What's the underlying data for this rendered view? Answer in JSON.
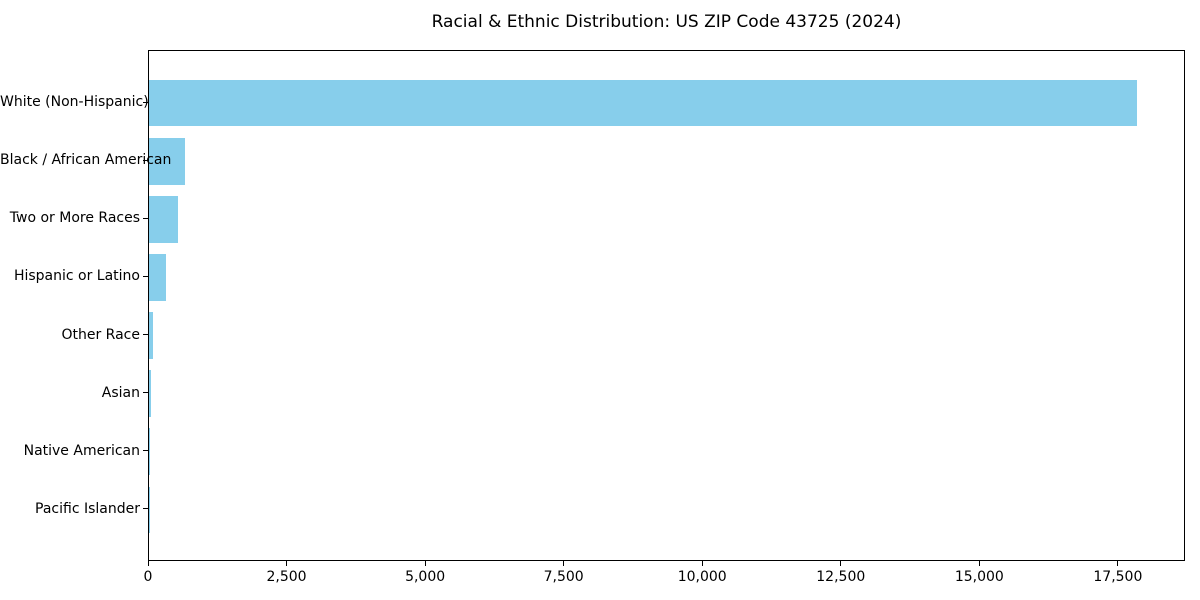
{
  "title": "Racial & Ethnic Distribution: US ZIP Code 43725 (2024)",
  "chart_data": {
    "type": "bar",
    "orientation": "horizontal",
    "title": "Racial & Ethnic Distribution: US ZIP Code 43725 (2024)",
    "categories": [
      "White (Non-Hispanic)",
      "Black / African American",
      "Two or More Races",
      "Hispanic or Latino",
      "Other Race",
      "Asian",
      "Native American",
      "Pacific Islander"
    ],
    "values": [
      17820,
      655,
      515,
      310,
      67,
      28,
      10,
      2
    ],
    "xlabel": "",
    "ylabel": "",
    "xlim": [
      0,
      18711
    ],
    "xticks": [
      0,
      2500,
      5000,
      7500,
      10000,
      12500,
      15000,
      17500
    ],
    "xtick_labels": [
      "0",
      "2,500",
      "5,000",
      "7,500",
      "10,000",
      "12,500",
      "15,000",
      "17,500"
    ],
    "bar_color": "#87ceeb",
    "axis_color": "#000000",
    "text_color": "#000000",
    "background_color": "#ffffff",
    "grid": false,
    "legend": false
  }
}
